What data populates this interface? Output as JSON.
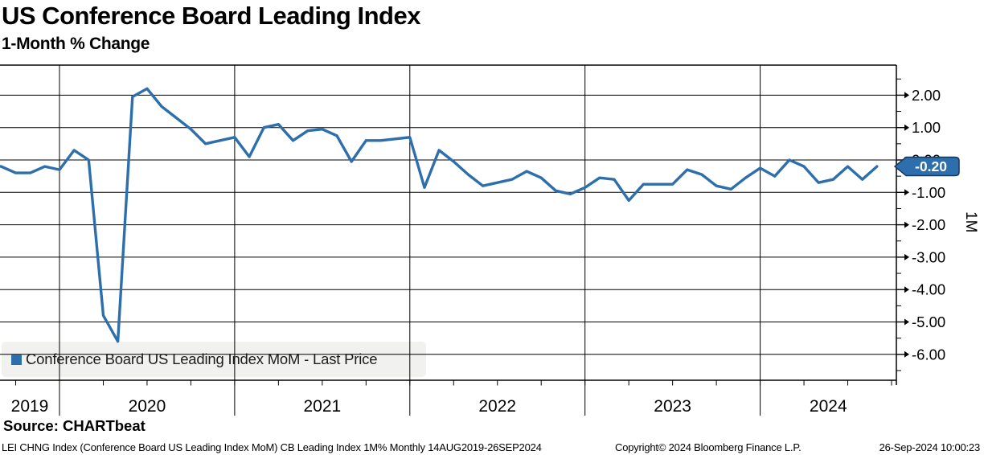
{
  "header": {
    "title": "US Conference Board Leading Index",
    "subtitle": "1-Month % Change"
  },
  "chart_data": {
    "type": "line",
    "title": "US Conference Board Leading Index",
    "subtitle": "1-Month % Change",
    "x": [
      "2019-08",
      "2019-09",
      "2019-10",
      "2019-11",
      "2019-12",
      "2020-01",
      "2020-02",
      "2020-03",
      "2020-04",
      "2020-05",
      "2020-06",
      "2020-07",
      "2020-08",
      "2020-09",
      "2020-10",
      "2020-11",
      "2020-12",
      "2021-01",
      "2021-02",
      "2021-03",
      "2021-04",
      "2021-05",
      "2021-06",
      "2021-07",
      "2021-08",
      "2021-09",
      "2021-10",
      "2021-11",
      "2021-12",
      "2022-01",
      "2022-02",
      "2022-03",
      "2022-04",
      "2022-05",
      "2022-06",
      "2022-07",
      "2022-08",
      "2022-09",
      "2022-10",
      "2022-11",
      "2022-12",
      "2023-01",
      "2023-02",
      "2023-03",
      "2023-04",
      "2023-05",
      "2023-06",
      "2023-07",
      "2023-08",
      "2023-09",
      "2023-10",
      "2023-11",
      "2023-12",
      "2024-01",
      "2024-02",
      "2024-03",
      "2024-04",
      "2024-05",
      "2024-06",
      "2024-07",
      "2024-08",
      "2024-09"
    ],
    "series": [
      {
        "name": "Conference Board US Leading Index MoM - Last Price",
        "color": "#2d6fac",
        "values": [
          -0.15,
          -0.2,
          -0.4,
          -0.4,
          -0.2,
          -0.3,
          0.3,
          0.0,
          -4.8,
          -5.6,
          1.95,
          2.2,
          1.65,
          1.3,
          0.95,
          0.5,
          0.6,
          0.7,
          0.1,
          1.0,
          1.1,
          0.6,
          0.9,
          0.95,
          0.75,
          -0.05,
          0.6,
          0.6,
          0.65,
          0.7,
          -0.85,
          0.3,
          -0.05,
          -0.45,
          -0.8,
          -0.7,
          -0.6,
          -0.35,
          -0.55,
          -0.95,
          -1.05,
          -0.85,
          -0.55,
          -0.6,
          -1.25,
          -0.75,
          -0.75,
          -0.75,
          -0.3,
          -0.45,
          -0.8,
          -0.9,
          -0.55,
          -0.25,
          -0.5,
          0.0,
          -0.2,
          -0.7,
          -0.6,
          -0.2,
          -0.6,
          -0.2
        ]
      }
    ],
    "x_tick_labels": [
      "2019",
      "2020",
      "2021",
      "2022",
      "2023",
      "2024"
    ],
    "y_ticks": [
      2,
      1,
      0,
      -1,
      -2,
      -3,
      -4,
      -5,
      -6
    ],
    "y_tick_labels": [
      "2.00",
      "1.00",
      "0.00",
      "-1.00",
      "-2.00",
      "-3.00",
      "-4.00",
      "-5.00",
      "-6.00"
    ],
    "ylim": [
      -6.8,
      2.93
    ],
    "grid": true,
    "legend_position": "bottom-left",
    "last_price": -0.2,
    "last_price_label": "-0.20",
    "right_axis_label": "1M",
    "period": "Monthly",
    "date_range": "14AUG2019-26SEP2024"
  },
  "legend": {
    "items": [
      {
        "label": "Conference Board US Leading Index MoM - Last Price",
        "color": "#2d6fac"
      }
    ]
  },
  "footer": {
    "source": "Source: CHARTbeat",
    "description": "LEI CHNG Index (Conference Board US Leading Index MoM) CB Leading Index 1M%  Monthly 14AUG2019-26SEP2024",
    "copyright": "Copyright© 2024 Bloomberg Finance L.P.",
    "timestamp": "26-Sep-2024 10:00:23"
  },
  "colors": {
    "line": "#2d6fac",
    "flag_bg": "#2d6fac",
    "flag_border": "#16365c",
    "flag_text": "#ffffff",
    "legend_bg": "#f1f1ef",
    "grid": "#000000"
  }
}
